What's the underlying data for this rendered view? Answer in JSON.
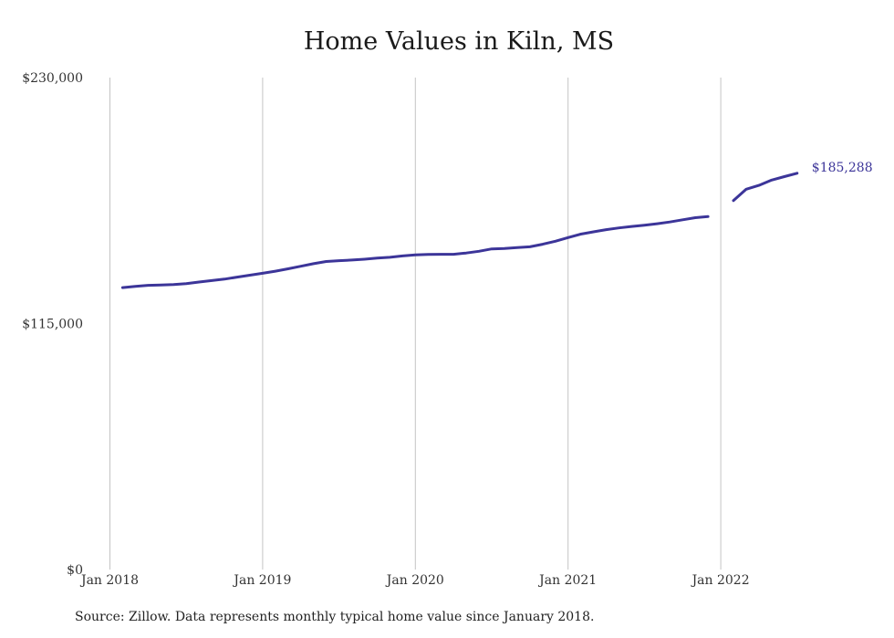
{
  "chart_data": {
    "type": "line",
    "title": "Home Values in Kiln, MS",
    "xlabel": "",
    "ylabel": "",
    "ylim": [
      0,
      230000
    ],
    "y_ticks": [
      {
        "value": 0,
        "label": "$0"
      },
      {
        "value": 115000,
        "label": "$115,000"
      },
      {
        "value": 230000,
        "label": "$230,000"
      }
    ],
    "x_ticks": [
      "Jan 2018",
      "Jan 2019",
      "Jan 2020",
      "Jan 2021",
      "Jan 2022"
    ],
    "grid": "vertical",
    "line_color": "#3c3599",
    "end_label": "$185,288",
    "segments": [
      {
        "x": [
          "2018-02",
          "2018-03",
          "2018-04",
          "2018-05",
          "2018-06",
          "2018-07",
          "2018-08",
          "2018-09",
          "2018-10",
          "2018-11",
          "2018-12",
          "2019-01",
          "2019-02",
          "2019-03",
          "2019-04",
          "2019-05",
          "2019-06",
          "2019-07",
          "2019-08",
          "2019-09",
          "2019-10",
          "2019-11",
          "2019-12",
          "2020-01",
          "2020-02",
          "2020-03",
          "2020-04",
          "2020-05",
          "2020-06",
          "2020-07",
          "2020-08",
          "2020-09",
          "2020-10",
          "2020-11",
          "2020-12",
          "2021-01",
          "2021-02",
          "2021-03",
          "2021-04",
          "2021-05",
          "2021-06",
          "2021-07",
          "2021-08",
          "2021-09",
          "2021-10",
          "2021-11",
          "2021-12"
        ],
        "y": [
          131800,
          132400,
          132900,
          133000,
          133200,
          133700,
          134400,
          135100,
          135800,
          136700,
          137600,
          138500,
          139500,
          140600,
          141800,
          143000,
          144000,
          144400,
          144700,
          145100,
          145600,
          146000,
          146600,
          147100,
          147300,
          147400,
          147400,
          148000,
          148800,
          149900,
          150100,
          150500,
          150900,
          152100,
          153500,
          155200,
          156800,
          157900,
          158900,
          159700,
          160400,
          161000,
          161700,
          162500,
          163500,
          164500,
          165000
        ]
      },
      {
        "x": [
          "2022-02",
          "2022-03",
          "2022-04",
          "2022-05",
          "2022-06",
          "2022-07"
        ],
        "y": [
          172500,
          177800,
          179600,
          182100,
          183700,
          185288
        ]
      }
    ]
  },
  "footer": {
    "source": "Source: Zillow. Data represents monthly typical home value since January 2018."
  }
}
